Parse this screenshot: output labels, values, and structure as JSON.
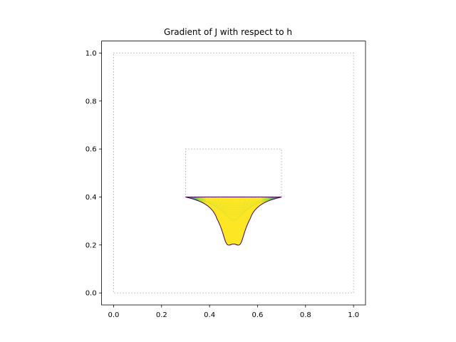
{
  "chart_data": {
    "type": "contour",
    "title": "Gradient of J with respect to h",
    "xlabel": "",
    "ylabel": "",
    "xlim": [
      -0.05,
      1.05
    ],
    "ylim": [
      -0.05,
      1.05
    ],
    "x_ticks": [
      "0.0",
      "0.2",
      "0.4",
      "0.6",
      "0.8",
      "1.0"
    ],
    "y_ticks": [
      "0.0",
      "0.2",
      "0.4",
      "0.6",
      "0.8",
      "1.0"
    ],
    "x_tick_values": [
      0.0,
      0.2,
      0.4,
      0.6,
      0.8,
      1.0
    ],
    "y_tick_values": [
      0.0,
      0.2,
      0.4,
      0.6,
      0.8,
      1.0
    ],
    "grid": false,
    "colormap": "viridis",
    "dotted_boxes": [
      {
        "x": [
          0.0,
          1.0
        ],
        "y": [
          0.0,
          1.0
        ]
      },
      {
        "x": [
          0.3,
          0.7
        ],
        "y": [
          0.4,
          0.6
        ]
      }
    ],
    "filled_region": {
      "top_y": 0.4,
      "left_x": 0.3,
      "right_x": 0.7,
      "bottom_y": 0.2,
      "bottom_center_x": 0.5
    },
    "box_color": "#888888"
  }
}
